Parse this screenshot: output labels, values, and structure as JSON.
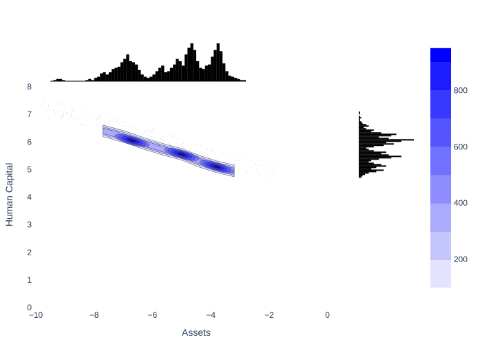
{
  "chart_data": {
    "type": "scatter",
    "title": "",
    "xlabel": "Assets",
    "ylabel": "Human Capital",
    "xlim": [
      -10,
      1
    ],
    "ylim": [
      0,
      8.2
    ],
    "x_ticks": [
      -10,
      -8,
      -6,
      -4,
      -2,
      0
    ],
    "y_ticks": [
      0,
      1,
      2,
      3,
      4,
      5,
      6,
      7,
      8
    ],
    "x_tick_labels": [
      "−10",
      "−8",
      "−6",
      "−4",
      "−2",
      "0"
    ],
    "y_tick_labels": [
      "0",
      "1",
      "2",
      "3",
      "4",
      "5",
      "6",
      "7",
      "8"
    ],
    "grid": false,
    "density_contour": {
      "colorscale": [
        "#e3e3ff",
        "#c6c6ff",
        "#aaaaff",
        "#8d8dff",
        "#7171ff",
        "#5555ff",
        "#3838ff",
        "#1c1cff",
        "#0000ff"
      ],
      "clusters": [
        {
          "x": -6.7,
          "y": 6.05,
          "peak": 950
        },
        {
          "x": -5.0,
          "y": 5.55,
          "peak": 800
        },
        {
          "x": -3.8,
          "y": 5.1,
          "peak": 900
        }
      ],
      "ridge": [
        [
          -7.7,
          6.4
        ],
        [
          -7.0,
          6.2
        ],
        [
          -6.3,
          5.95
        ],
        [
          -5.7,
          5.75
        ],
        [
          -5.0,
          5.55
        ],
        [
          -4.4,
          5.3
        ],
        [
          -3.8,
          5.1
        ],
        [
          -3.2,
          4.95
        ]
      ]
    },
    "marginal_x": {
      "name": "Assets histogram",
      "bin_range": [
        -9.5,
        -2.8
      ],
      "bin_width": 0.1,
      "counts": [
        0,
        1,
        2,
        2,
        1,
        0,
        0,
        0,
        0,
        0,
        0,
        0,
        1,
        2,
        1,
        3,
        4,
        7,
        8,
        6,
        8,
        11,
        12,
        13,
        17,
        20,
        24,
        18,
        17,
        15,
        10,
        6,
        4,
        3,
        4,
        6,
        9,
        12,
        14,
        8,
        9,
        12,
        15,
        20,
        18,
        14,
        24,
        30,
        34,
        28,
        18,
        12,
        11,
        14,
        15,
        22,
        28,
        34,
        27,
        16,
        9,
        5,
        4,
        3,
        2,
        1,
        1
      ]
    },
    "marginal_y": {
      "name": "Human Capital histogram",
      "bin_range": [
        4.7,
        7.1
      ],
      "bin_width": 0.05,
      "counts": [
        2,
        3,
        5,
        8,
        14,
        20,
        10,
        14,
        22,
        18,
        12,
        8,
        10,
        16,
        26,
        34,
        24,
        18,
        22,
        12,
        8,
        6,
        12,
        20,
        28,
        22,
        34,
        44,
        24,
        16,
        26,
        30,
        18,
        10,
        12,
        6,
        4,
        8,
        6,
        3,
        2,
        1,
        1,
        2,
        1,
        0,
        1,
        1
      ]
    },
    "colorbar": {
      "range": [
        100,
        950
      ],
      "ticks": [
        200,
        400,
        600,
        800
      ],
      "tick_labels": [
        "200",
        "400",
        "600",
        "800"
      ],
      "levels": [
        100,
        200,
        300,
        400,
        500,
        600,
        700,
        800,
        900,
        950
      ]
    }
  }
}
